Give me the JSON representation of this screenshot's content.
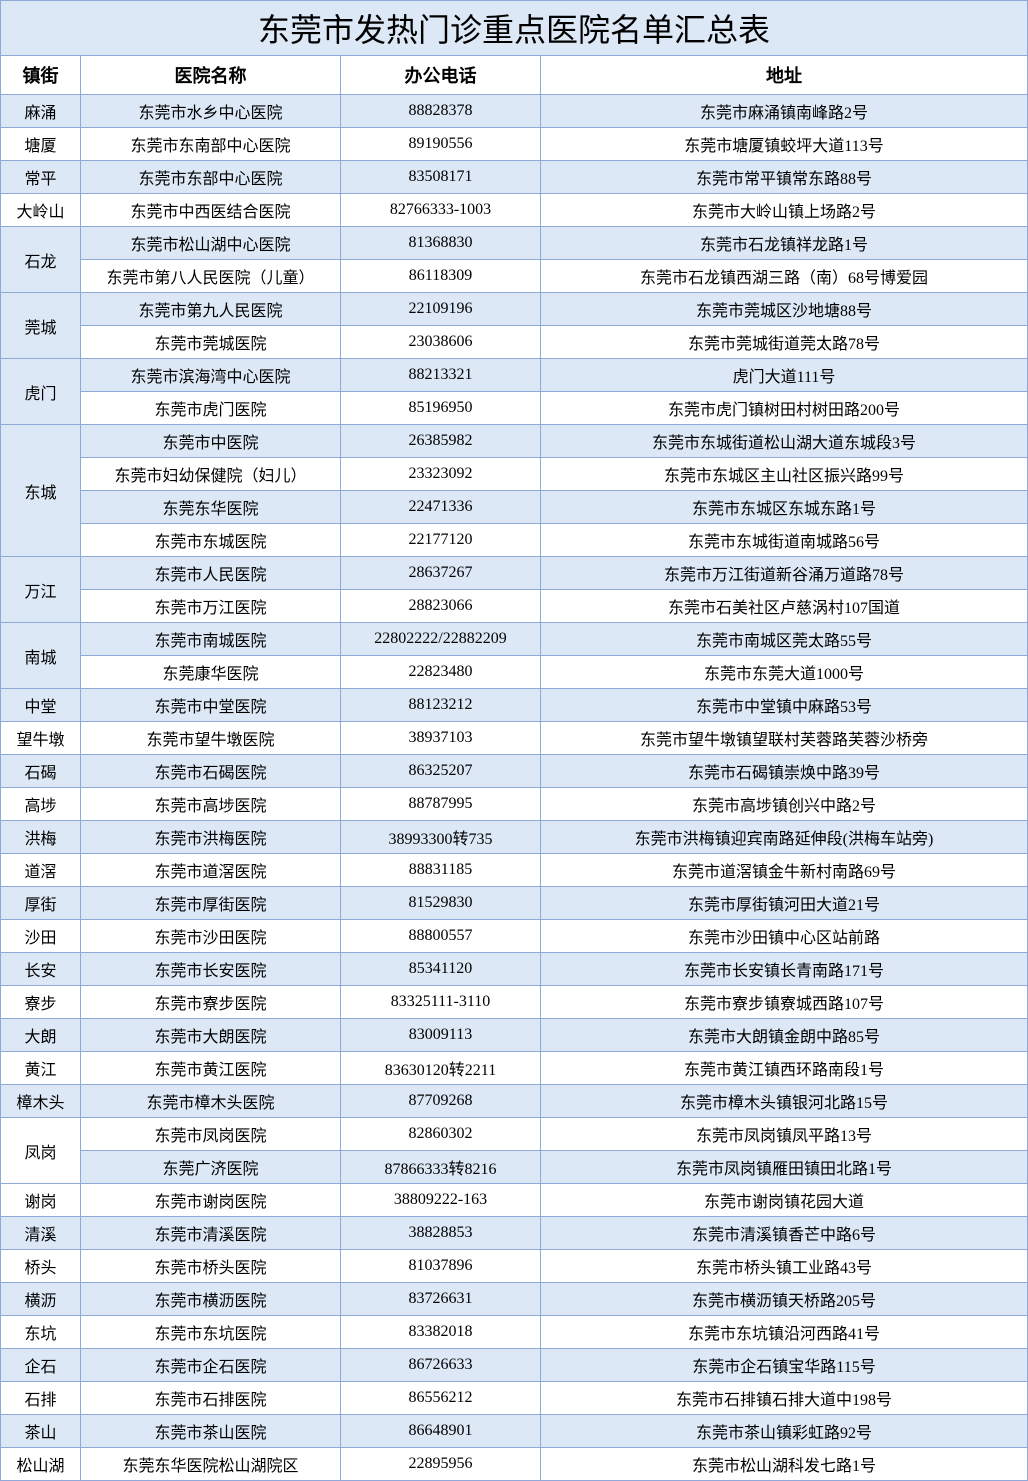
{
  "title": "东莞市发热门诊重点医院名单汇总表",
  "headers": {
    "town": "镇街",
    "hospital": "医院名称",
    "phone": "办公电话",
    "address": "地址"
  },
  "colors": {
    "band_bg": "#dde8f6",
    "border": "#8faad8",
    "text": "#000000",
    "bg": "#ffffff"
  },
  "column_widths": {
    "town": 80,
    "hospital": 260,
    "phone": 200
  },
  "groups": [
    {
      "town": "麻涌",
      "rows": [
        {
          "hospital": "东莞市水乡中心医院",
          "phone": "88828378",
          "address": "东莞市麻涌镇南峰路2号"
        }
      ]
    },
    {
      "town": "塘厦",
      "rows": [
        {
          "hospital": "东莞市东南部中心医院",
          "phone": "89190556",
          "address": "东莞市塘厦镇蛟坪大道113号"
        }
      ]
    },
    {
      "town": "常平",
      "rows": [
        {
          "hospital": "东莞市东部中心医院",
          "phone": "83508171",
          "address": "东莞市常平镇常东路88号"
        }
      ]
    },
    {
      "town": "大岭山",
      "rows": [
        {
          "hospital": "东莞市中西医结合医院",
          "phone": "82766333-1003",
          "address": "东莞市大岭山镇上场路2号"
        }
      ]
    },
    {
      "town": "石龙",
      "rows": [
        {
          "hospital": "东莞市松山湖中心医院",
          "phone": "81368830",
          "address": "东莞市石龙镇祥龙路1号"
        },
        {
          "hospital": "东莞市第八人民医院（儿童）",
          "phone": "86118309",
          "address": "东莞市石龙镇西湖三路（南）68号博爱园"
        }
      ]
    },
    {
      "town": "莞城",
      "rows": [
        {
          "hospital": "东莞市第九人民医院",
          "phone": "22109196",
          "address": "东莞市莞城区沙地塘88号"
        },
        {
          "hospital": "东莞市莞城医院",
          "phone": "23038606",
          "address": "东莞市莞城街道莞太路78号"
        }
      ]
    },
    {
      "town": "虎门",
      "rows": [
        {
          "hospital": "东莞市滨海湾中心医院",
          "phone": "88213321",
          "address": "虎门大道111号"
        },
        {
          "hospital": "东莞市虎门医院",
          "phone": "85196950",
          "address": "东莞市虎门镇树田村树田路200号"
        }
      ]
    },
    {
      "town": "东城",
      "rows": [
        {
          "hospital": "东莞市中医院",
          "phone": "26385982",
          "address": "东莞市东城街道松山湖大道东城段3号"
        },
        {
          "hospital": "东莞市妇幼保健院（妇儿）",
          "phone": "23323092",
          "address": "东莞市东城区主山社区振兴路99号"
        },
        {
          "hospital": "东莞东华医院",
          "phone": "22471336",
          "address": "东莞市东城区东城东路1号"
        },
        {
          "hospital": "东莞市东城医院",
          "phone": "22177120",
          "address": "东莞市东城街道南城路56号"
        }
      ]
    },
    {
      "town": "万江",
      "rows": [
        {
          "hospital": "东莞市人民医院",
          "phone": "28637267",
          "address": "东莞市万江街道新谷涌万道路78号"
        },
        {
          "hospital": "东莞市万江医院",
          "phone": "28823066",
          "address": "东莞市石美社区卢慈涡村107国道"
        }
      ]
    },
    {
      "town": "南城",
      "rows": [
        {
          "hospital": "东莞市南城医院",
          "phone": "22802222/22882209",
          "address": "东莞市南城区莞太路55号"
        },
        {
          "hospital": "东莞康华医院",
          "phone": "22823480",
          "address": "东莞市东莞大道1000号"
        }
      ]
    },
    {
      "town": "中堂",
      "rows": [
        {
          "hospital": "东莞市中堂医院",
          "phone": "88123212",
          "address": "东莞市中堂镇中麻路53号"
        }
      ]
    },
    {
      "town": "望牛墩",
      "rows": [
        {
          "hospital": "东莞市望牛墩医院",
          "phone": "38937103",
          "address": "东莞市望牛墩镇望联村芙蓉路芙蓉沙桥旁"
        }
      ]
    },
    {
      "town": "石碣",
      "rows": [
        {
          "hospital": "东莞市石碣医院",
          "phone": "86325207",
          "address": "东莞市石碣镇崇焕中路39号"
        }
      ]
    },
    {
      "town": "高埗",
      "rows": [
        {
          "hospital": "东莞市高埗医院",
          "phone": "88787995",
          "address": "东莞市高埗镇创兴中路2号"
        }
      ]
    },
    {
      "town": "洪梅",
      "rows": [
        {
          "hospital": "东莞市洪梅医院",
          "phone": "38993300转735",
          "address": "东莞市洪梅镇迎宾南路延伸段(洪梅车站旁)"
        }
      ]
    },
    {
      "town": "道滘",
      "rows": [
        {
          "hospital": "东莞市道滘医院",
          "phone": "88831185",
          "address": "东莞市道滘镇金牛新村南路69号"
        }
      ]
    },
    {
      "town": "厚街",
      "rows": [
        {
          "hospital": "东莞市厚街医院",
          "phone": "81529830",
          "address": "东莞市厚街镇河田大道21号"
        }
      ]
    },
    {
      "town": "沙田",
      "rows": [
        {
          "hospital": "东莞市沙田医院",
          "phone": "88800557",
          "address": "东莞市沙田镇中心区站前路"
        }
      ]
    },
    {
      "town": "长安",
      "rows": [
        {
          "hospital": "东莞市长安医院",
          "phone": "85341120",
          "address": "东莞市长安镇长青南路171号"
        }
      ]
    },
    {
      "town": "寮步",
      "rows": [
        {
          "hospital": "东莞市寮步医院",
          "phone": "83325111-3110",
          "address": "东莞市寮步镇寮城西路107号"
        }
      ]
    },
    {
      "town": "大朗",
      "rows": [
        {
          "hospital": "东莞市大朗医院",
          "phone": "83009113",
          "address": "东莞市大朗镇金朗中路85号"
        }
      ]
    },
    {
      "town": "黄江",
      "rows": [
        {
          "hospital": "东莞市黄江医院",
          "phone": "83630120转2211",
          "address": "东莞市黄江镇西环路南段1号"
        }
      ]
    },
    {
      "town": "樟木头",
      "rows": [
        {
          "hospital": "东莞市樟木头医院",
          "phone": "87709268",
          "address": "东莞市樟木头镇银河北路15号"
        }
      ]
    },
    {
      "town": "凤岗",
      "rows": [
        {
          "hospital": "东莞市凤岗医院",
          "phone": "82860302",
          "address": "东莞市凤岗镇凤平路13号"
        },
        {
          "hospital": "东莞广济医院",
          "phone": "87866333转8216",
          "address": "东莞市凤岗镇雁田镇田北路1号"
        }
      ]
    },
    {
      "town": "谢岗",
      "rows": [
        {
          "hospital": "东莞市谢岗医院",
          "phone": "38809222-163",
          "address": "东莞市谢岗镇花园大道"
        }
      ]
    },
    {
      "town": "清溪",
      "rows": [
        {
          "hospital": "东莞市清溪医院",
          "phone": "38828853",
          "address": "东莞市清溪镇香芒中路6号"
        }
      ]
    },
    {
      "town": "桥头",
      "rows": [
        {
          "hospital": "东莞市桥头医院",
          "phone": "81037896",
          "address": "东莞市桥头镇工业路43号"
        }
      ]
    },
    {
      "town": "横沥",
      "rows": [
        {
          "hospital": "东莞市横沥医院",
          "phone": "83726631",
          "address": "东莞市横沥镇天桥路205号"
        }
      ]
    },
    {
      "town": "东坑",
      "rows": [
        {
          "hospital": "东莞市东坑医院",
          "phone": "83382018",
          "address": "东莞市东坑镇沿河西路41号"
        }
      ]
    },
    {
      "town": "企石",
      "rows": [
        {
          "hospital": "东莞市企石医院",
          "phone": "86726633",
          "address": "东莞市企石镇宝华路115号"
        }
      ]
    },
    {
      "town": "石排",
      "rows": [
        {
          "hospital": "东莞市石排医院",
          "phone": "86556212",
          "address": "东莞市石排镇石排大道中198号"
        }
      ]
    },
    {
      "town": "茶山",
      "rows": [
        {
          "hospital": "东莞市茶山医院",
          "phone": "86648901",
          "address": "东莞市茶山镇彩虹路92号"
        }
      ]
    },
    {
      "town": "松山湖",
      "rows": [
        {
          "hospital": "东莞东华医院松山湖院区",
          "phone": "22895956",
          "address": "东莞市松山湖科发七路1号"
        }
      ]
    }
  ]
}
